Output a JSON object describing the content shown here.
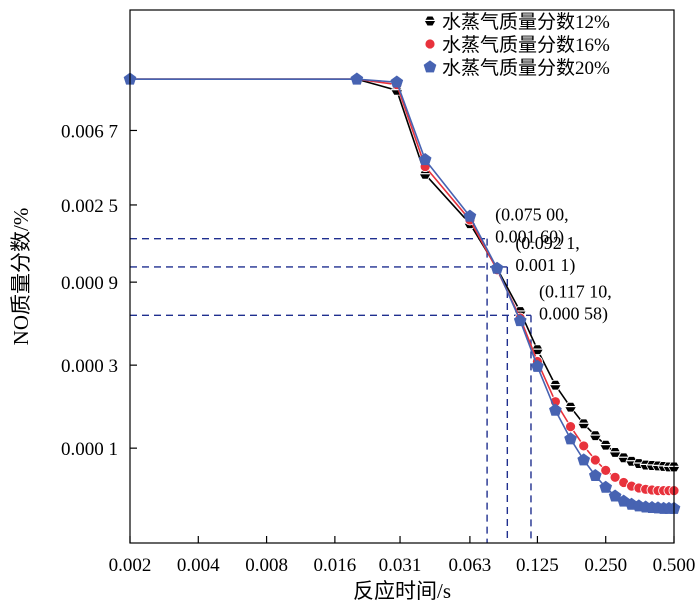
{
  "chart_data": {
    "type": "line",
    "title": "",
    "xlabel": "反应时间/s",
    "ylabel": "NO质量分数/%",
    "x_scale": "log2",
    "y_scale": "log",
    "xlim": [
      0.002,
      0.5
    ],
    "ylim": [
      2.85e-05,
      0.033
    ],
    "x_ticks": [
      0.002,
      0.004,
      0.008,
      0.016,
      0.031,
      0.063,
      0.125,
      0.25,
      0.5
    ],
    "x_tick_labels": [
      "0.002",
      "0.004",
      "0.008",
      "0.016",
      "0.031",
      "0.063",
      "0.125",
      "0.250",
      "0.500"
    ],
    "y_ticks": [
      0.0001,
      0.0003,
      0.0009,
      0.0025,
      0.0067
    ],
    "y_tick_labels": [
      "0.000 1",
      "0.000 3",
      "0.000 9",
      "0.002 5",
      "0.006 7"
    ],
    "grid": false,
    "legend_position": "top-right",
    "series": [
      {
        "name": "水蒸气质量分数12%",
        "color": "#000000",
        "marker": "hexagon",
        "x": [
          0.002,
          0.02,
          0.03,
          0.04,
          0.063,
          0.083,
          0.105,
          0.125,
          0.15,
          0.175,
          0.2,
          0.225,
          0.25,
          0.275,
          0.3,
          0.325,
          0.35,
          0.375,
          0.4,
          0.425,
          0.45,
          0.475,
          0.5
        ],
        "y": [
          0.0132,
          0.0132,
          0.0114,
          0.00375,
          0.00195,
          0.00108,
          0.00061,
          0.000368,
          0.00023,
          0.000172,
          0.000138,
          0.000118,
          0.000104,
          9.45e-05,
          8.8e-05,
          8.4e-05,
          8.15e-05,
          8e-05,
          7.95e-05,
          7.9e-05,
          7.85e-05,
          7.8e-05,
          7.8e-05
        ]
      },
      {
        "name": "水蒸气质量分数16%",
        "color": "#e8323c",
        "marker": "circle",
        "x": [
          0.002,
          0.02,
          0.03,
          0.04,
          0.063,
          0.083,
          0.105,
          0.125,
          0.15,
          0.175,
          0.2,
          0.225,
          0.25,
          0.275,
          0.3,
          0.325,
          0.35,
          0.375,
          0.4,
          0.425,
          0.45,
          0.475,
          0.5
        ],
        "y": [
          0.0132,
          0.0132,
          0.0123,
          0.00415,
          0.00205,
          0.00106,
          0.00056,
          0.000315,
          0.000185,
          0.000133,
          0.000103,
          8.55e-05,
          7.45e-05,
          6.8e-05,
          6.35e-05,
          6.05e-05,
          5.9e-05,
          5.8e-05,
          5.75e-05,
          5.7e-05,
          5.7e-05,
          5.7e-05,
          5.7e-05
        ]
      },
      {
        "name": "水蒸气质量分数20%",
        "color": "#4763b2",
        "marker": "pentagon",
        "x": [
          0.002,
          0.02,
          0.03,
          0.04,
          0.063,
          0.083,
          0.105,
          0.125,
          0.15,
          0.175,
          0.2,
          0.225,
          0.25,
          0.275,
          0.3,
          0.325,
          0.35,
          0.375,
          0.4,
          0.425,
          0.45,
          0.475,
          0.5
        ],
        "y": [
          0.0132,
          0.0132,
          0.0127,
          0.00455,
          0.00215,
          0.00108,
          0.00054,
          0.000295,
          0.000165,
          0.000113,
          8.55e-05,
          6.95e-05,
          5.95e-05,
          5.3e-05,
          4.95e-05,
          4.75e-05,
          4.65e-05,
          4.58e-05,
          4.55e-05,
          4.53e-05,
          4.5e-05,
          4.5e-05,
          4.5e-05
        ]
      }
    ],
    "annotations": [
      {
        "label": "(0.075 00,\n0.001 60)",
        "x": 0.075,
        "y": 0.0016,
        "text_anchor": "right"
      },
      {
        "label": "(0.092 1,\n0.001 1)",
        "x": 0.0921,
        "y": 0.0011,
        "text_anchor": "right"
      },
      {
        "label": "(0.117 10,\n0.000 58)",
        "x": 0.1171,
        "y": 0.00058,
        "text_anchor": "right"
      }
    ],
    "reference_line_color": "#1f2f8f"
  }
}
